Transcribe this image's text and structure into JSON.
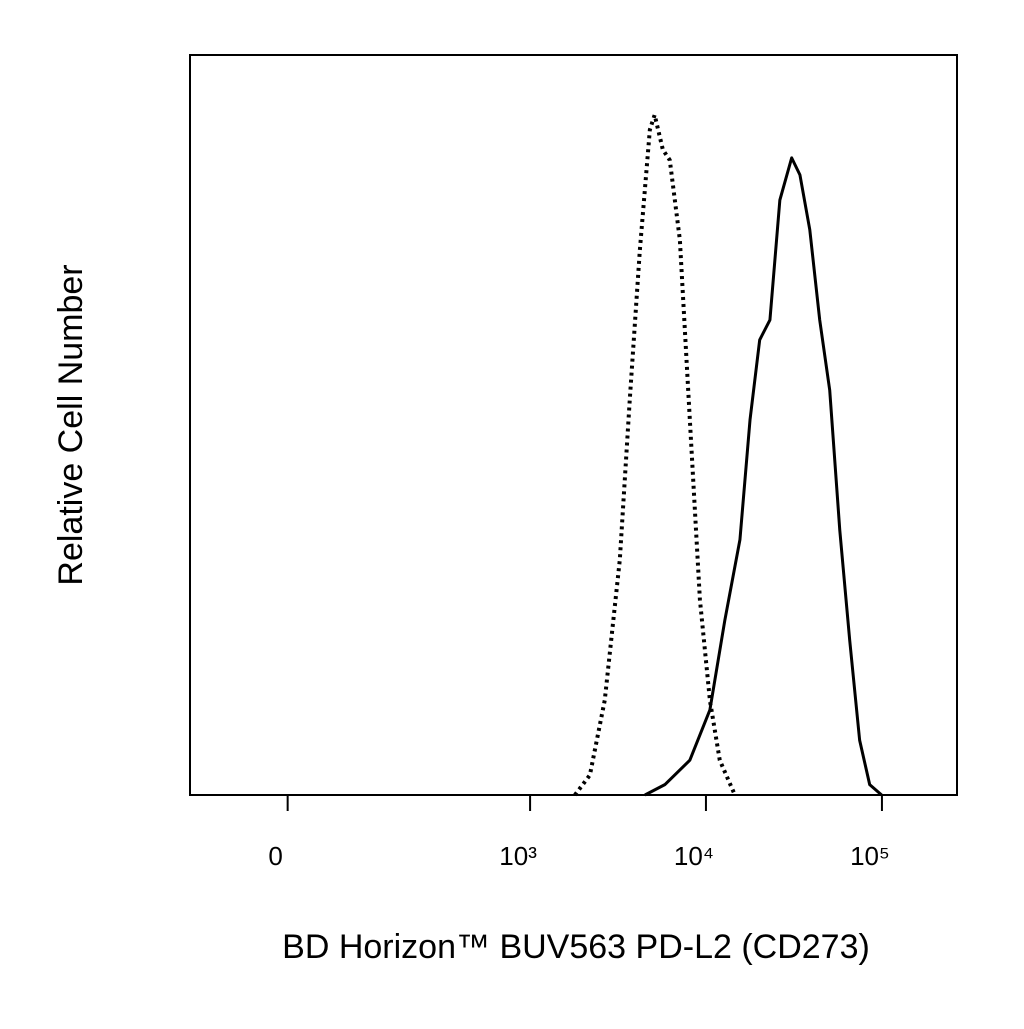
{
  "chart_data": {
    "type": "histogram-overlay",
    "xlabel": "BD Horizon™ BUV563 PD-L2 (CD273)",
    "ylabel": "Relative Cell Number",
    "xscale": "biexponential",
    "xlim": [
      -139,
      267000
    ],
    "xticks": [
      0,
      {
        "value": 1000,
        "label": "10³"
      },
      {
        "value": 10000,
        "label": "10⁴"
      },
      {
        "value": 100000,
        "label": "10⁵"
      }
    ],
    "ylim": [
      0,
      100
    ],
    "series": [
      {
        "color": "#000000",
        "dashed": true,
        "x": [
          1800,
          2190,
          2660,
          3240,
          3690,
          4210,
          4800,
          5110,
          5690,
          6230,
          7110,
          8100,
          9240,
          10530,
          11980,
          14600
        ],
        "values": [
          0,
          2.7,
          12.8,
          31.8,
          53.4,
          73.6,
          89.9,
          91.9,
          87.2,
          85.8,
          75.0,
          50.7,
          26.4,
          12.8,
          4.7,
          0
        ]
      },
      {
        "color": "#000000",
        "dashed": false,
        "x": [
          4500,
          5840,
          8100,
          10530,
          12800,
          15600,
          17800,
          20200,
          23100,
          26300,
          30700,
          34200,
          38900,
          44300,
          50500,
          57600,
          65600,
          74700,
          85200,
          99600
        ],
        "values": [
          0,
          1.4,
          4.7,
          11.5,
          23.6,
          34.5,
          50.7,
          61.5,
          64.2,
          80.4,
          86.1,
          83.8,
          76.4,
          64.2,
          54.7,
          35.8,
          20.9,
          7.4,
          1.4,
          0
        ]
      }
    ]
  }
}
